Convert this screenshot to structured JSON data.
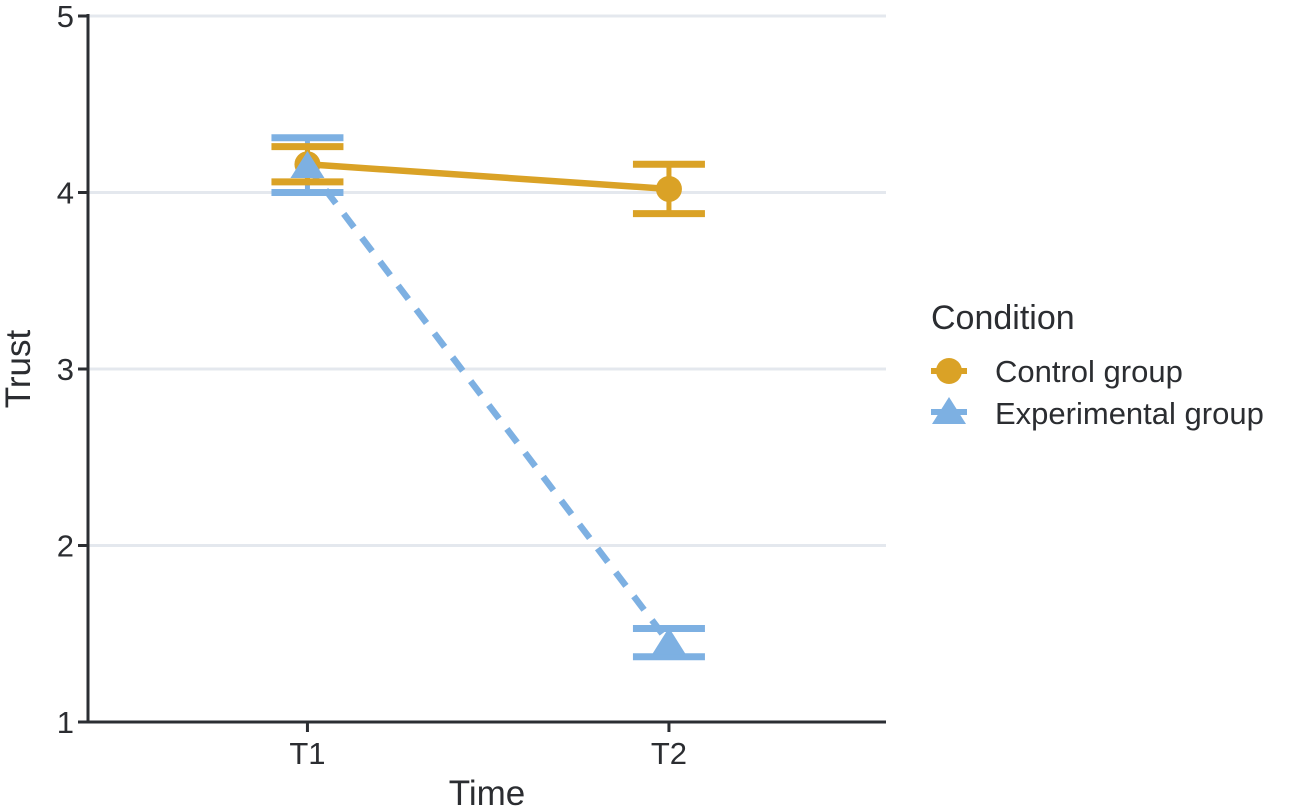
{
  "chart_data": {
    "type": "line",
    "title": "",
    "xlabel": "Time",
    "ylabel": "Trust",
    "categories": [
      "T1",
      "T2"
    ],
    "y_ticks": [
      5,
      4,
      3,
      2,
      1
    ],
    "ylim": [
      1,
      5
    ],
    "grid": "horizontal-major-only",
    "legend": {
      "title": "Condition",
      "position": "right"
    },
    "series": [
      {
        "name": "Control group",
        "marker": "circle",
        "line_style": "solid",
        "color": "#DAA226",
        "means": [
          4.16,
          4.02
        ],
        "ci_low": [
          4.06,
          3.88
        ],
        "ci_high": [
          4.26,
          4.16
        ]
      },
      {
        "name": "Experimental group",
        "marker": "triangle",
        "line_style": "dashed",
        "color": "#7DB0E2",
        "means": [
          4.15,
          1.45
        ],
        "ci_low": [
          4.0,
          1.37
        ],
        "ci_high": [
          4.31,
          1.53
        ]
      }
    ]
  },
  "colors": {
    "background": "#ffffff",
    "grid": "#e4e8ee",
    "axis": "#2b2e33",
    "text": "#2b2d31"
  }
}
